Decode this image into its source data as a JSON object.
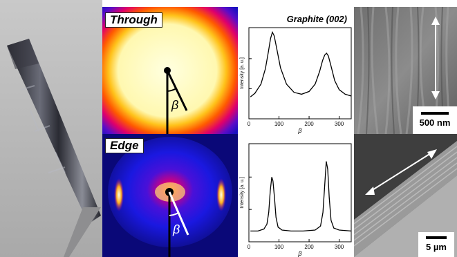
{
  "panels": {
    "through_label": "Through",
    "edge_label": "Edge",
    "beta_symbol": "β",
    "sem_top_scale": "500 nm",
    "sem_bottom_scale": "5 µm"
  },
  "chart_data": [
    {
      "type": "line",
      "title": "Graphite (002)",
      "xlabel": "β",
      "ylabel": "Intensity [a. u.]",
      "xlim": [
        0,
        340
      ],
      "xticks": [
        "0",
        "100",
        "200",
        "300"
      ],
      "series": [
        {
          "x": [
            5,
            20,
            40,
            55,
            65,
            72,
            78,
            84,
            92,
            105,
            125,
            150,
            175,
            200,
            220,
            235,
            245,
            252,
            258,
            264,
            272,
            285,
            300,
            320,
            340
          ],
          "y": [
            0.24,
            0.28,
            0.38,
            0.55,
            0.74,
            0.88,
            0.95,
            0.91,
            0.78,
            0.56,
            0.38,
            0.29,
            0.27,
            0.3,
            0.38,
            0.52,
            0.64,
            0.7,
            0.72,
            0.69,
            0.59,
            0.42,
            0.32,
            0.27,
            0.25
          ]
        }
      ]
    },
    {
      "type": "line",
      "title": "",
      "xlabel": "β",
      "ylabel": "Intensity [a. u.]",
      "xlim": [
        0,
        340
      ],
      "xticks": [
        "0",
        "100",
        "200",
        "300"
      ],
      "series": [
        {
          "x": [
            5,
            30,
            50,
            60,
            66,
            71,
            76,
            80,
            85,
            90,
            97,
            110,
            140,
            180,
            220,
            238,
            246,
            252,
            257,
            262,
            267,
            273,
            282,
            300,
            340
          ],
          "y": [
            0.11,
            0.11,
            0.13,
            0.18,
            0.3,
            0.52,
            0.66,
            0.62,
            0.45,
            0.25,
            0.15,
            0.12,
            0.11,
            0.11,
            0.12,
            0.16,
            0.3,
            0.58,
            0.82,
            0.74,
            0.45,
            0.22,
            0.14,
            0.12,
            0.11
          ]
        }
      ]
    }
  ]
}
